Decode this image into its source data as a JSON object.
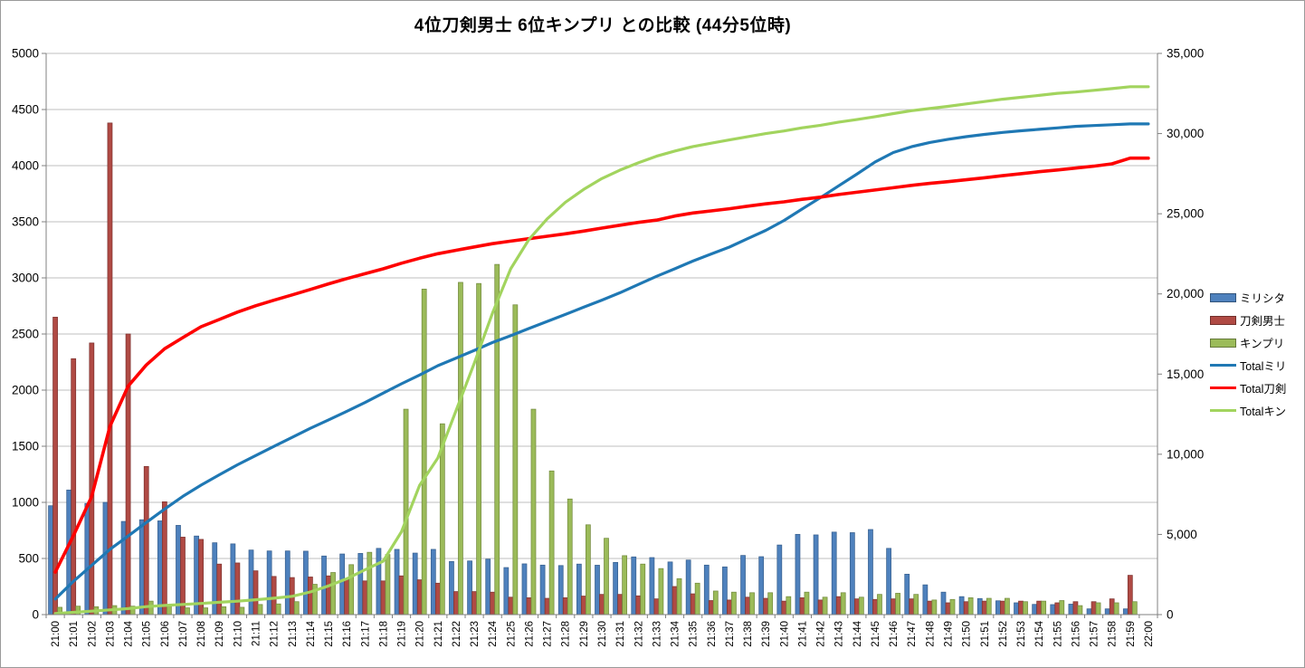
{
  "title": "4位刀剣男士 6位キンプリ との比較 (44分5位時)",
  "colors": {
    "background": "#ffffff",
    "gridline": "#bfbfbf",
    "axis_line": "#808080",
    "tick_text": "#000000"
  },
  "chart_data": {
    "type": "combo-bar-line",
    "grid": true,
    "legend_position": "right",
    "categories": [
      "21:00",
      "21:01",
      "21:02",
      "21:03",
      "21:04",
      "21:05",
      "21:06",
      "21:07",
      "21:08",
      "21:09",
      "21:10",
      "21:11",
      "21:12",
      "21:13",
      "21:14",
      "21:15",
      "21:16",
      "21:17",
      "21:18",
      "21:19",
      "21:20",
      "21:21",
      "21:22",
      "21:23",
      "21:24",
      "21:25",
      "21:26",
      "21:27",
      "21:28",
      "21:29",
      "21:30",
      "21:31",
      "21:32",
      "21:33",
      "21:34",
      "21:35",
      "21:36",
      "21:37",
      "21:38",
      "21:39",
      "21:40",
      "21:41",
      "21:42",
      "21:43",
      "21:44",
      "21:45",
      "21:46",
      "21:47",
      "21:48",
      "21:49",
      "21:50",
      "21:51",
      "21:52",
      "21:53",
      "21:54",
      "21:55",
      "21:56",
      "21:57",
      "21:58",
      "21:59",
      "22:00"
    ],
    "left_axis": {
      "min": 0,
      "max": 5000,
      "step": 500,
      "tick_labels": [
        "0",
        "500",
        "1000",
        "1500",
        "2000",
        "2500",
        "3000",
        "3500",
        "4000",
        "4500",
        "5000"
      ]
    },
    "right_axis": {
      "min": 0,
      "max": 35000,
      "step": 5000,
      "tick_labels": [
        "0",
        "5,000",
        "10,000",
        "15,000",
        "20,000",
        "25,000",
        "30,000",
        "35,000"
      ]
    },
    "bar_series": [
      {
        "id": "millisita",
        "name": "ミリシタ",
        "color": "#4e81bd",
        "border": "#39618f",
        "values": [
          970,
          1110,
          990,
          1000,
          830,
          845,
          835,
          795,
          700,
          640,
          630,
          575,
          567,
          567,
          565,
          522,
          540,
          545,
          590,
          581,
          548,
          581,
          473,
          478,
          494,
          419,
          452,
          441,
          437,
          450,
          440,
          465,
          514,
          508,
          469,
          486,
          441,
          425,
          527,
          516,
          620,
          715,
          710,
          735,
          730,
          758,
          590,
          360,
          265,
          200,
          160,
          143,
          123,
          105,
          91,
          89,
          93,
          51,
          51,
          51,
          0
        ]
      },
      {
        "id": "touken",
        "name": "刀剣男士",
        "color": "#b04a44",
        "border": "#7e3431",
        "values": [
          2650,
          2280,
          2420,
          4380,
          2500,
          1320,
          1005,
          690,
          670,
          450,
          460,
          390,
          340,
          330,
          335,
          345,
          320,
          300,
          300,
          345,
          310,
          280,
          205,
          205,
          200,
          155,
          150,
          145,
          150,
          165,
          180,
          180,
          167,
          140,
          250,
          185,
          125,
          130,
          155,
          145,
          120,
          150,
          130,
          160,
          140,
          135,
          140,
          140,
          120,
          105,
          115,
          120,
          120,
          120,
          120,
          105,
          115,
          115,
          140,
          350,
          0
        ]
      },
      {
        "id": "kinpuri",
        "name": "キンプリ",
        "color": "#9bbb59",
        "border": "#748b3f",
        "values": [
          65,
          75,
          70,
          80,
          75,
          120,
          75,
          60,
          60,
          70,
          65,
          90,
          95,
          115,
          270,
          375,
          445,
          555,
          535,
          1830,
          2900,
          1700,
          2960,
          2950,
          3120,
          2760,
          1830,
          1280,
          1030,
          800,
          680,
          525,
          450,
          410,
          320,
          280,
          210,
          200,
          195,
          195,
          160,
          200,
          155,
          195,
          155,
          180,
          190,
          180,
          130,
          135,
          150,
          145,
          145,
          115,
          120,
          125,
          80,
          105,
          105,
          115,
          0
        ]
      }
    ],
    "line_series": [
      {
        "id": "total-miri",
        "name": "Totalミリ",
        "color": "#1f78b4",
        "width": 3.2,
        "values": [
          970,
          2080,
          3070,
          4070,
          4900,
          5745,
          6580,
          7375,
          8075,
          8715,
          9345,
          9920,
          10487,
          11054,
          11619,
          12141,
          12681,
          13226,
          13816,
          14397,
          14945,
          15526,
          15999,
          16477,
          16971,
          17390,
          17842,
          18283,
          18720,
          19170,
          19610,
          20075,
          20589,
          21097,
          21566,
          22052,
          22493,
          22918,
          23445,
          23961,
          24581,
          25296,
          26006,
          26741,
          27471,
          28229,
          28819,
          29179,
          29444,
          29644,
          29804,
          29947,
          30070,
          30175,
          30266,
          30355,
          30448,
          30499,
          30550,
          30601,
          30601
        ]
      },
      {
        "id": "total-token",
        "name": "Total刀剣",
        "color": "#fe0000",
        "width": 3.6,
        "values": [
          2650,
          4934,
          7359,
          11743,
          14247,
          15572,
          16581,
          17275,
          17949,
          18404,
          18868,
          19262,
          19607,
          19941,
          20280,
          20630,
          20954,
          21258,
          21562,
          21912,
          22226,
          22510,
          22720,
          22929,
          23133,
          23293,
          23447,
          23596,
          23750,
          23920,
          24104,
          24288,
          24460,
          24604,
          24858,
          25048,
          25177,
          25311,
          25470,
          25620,
          25744,
          25898,
          26033,
          26197,
          26341,
          26481,
          26625,
          26769,
          26893,
          27003,
          27122,
          27246,
          27371,
          27495,
          27619,
          27729,
          27848,
          27967,
          28111,
          28466,
          28470
        ]
      },
      {
        "id": "total-kin",
        "name": "Totalキン",
        "color": "#a2d45e",
        "width": 3.2,
        "values": [
          65,
          142,
          214,
          296,
          373,
          495,
          572,
          634,
          696,
          768,
          835,
          927,
          1024,
          1141,
          1413,
          1790,
          2237,
          2794,
          3331,
          5163,
          8065,
          9767,
          12729,
          15681,
          18803,
          21565,
          23397,
          24679,
          25711,
          26513,
          27195,
          27722,
          28174,
          28586,
          28908,
          29190,
          29402,
          29604,
          29801,
          29998,
          30160,
          30362,
          30519,
          30716,
          30873,
          31055,
          31247,
          31429,
          31561,
          31698,
          31850,
          31997,
          32144,
          32261,
          32383,
          32510,
          32592,
          32699,
          32806,
          32923,
          32925
        ]
      }
    ]
  }
}
